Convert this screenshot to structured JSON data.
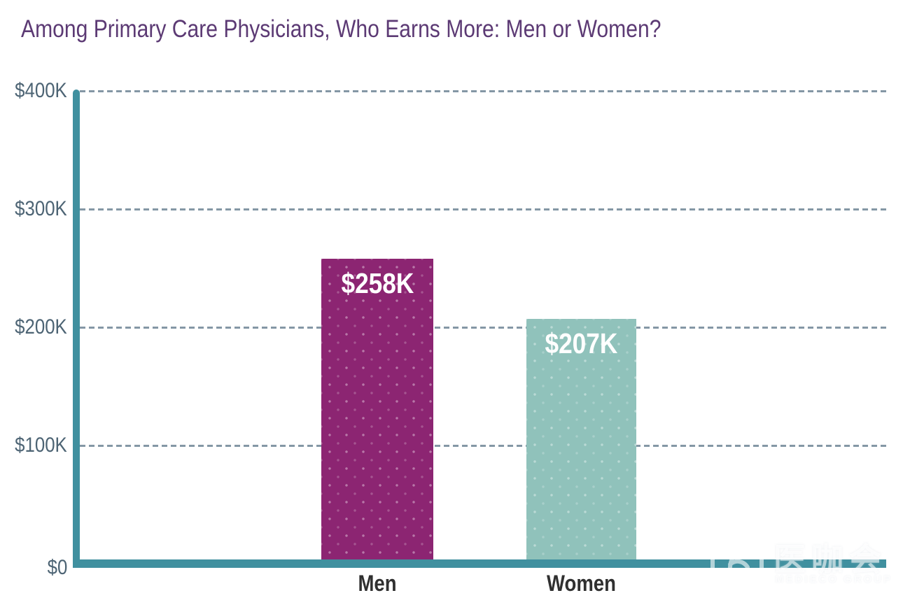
{
  "title": {
    "text": "Among Primary Care Physicians, Who Earns More: Men or Women?",
    "color": "#5c3a74"
  },
  "chart_data": {
    "type": "bar",
    "title": "Among Primary Care Physicians, Who Earns More: Men or Women?",
    "categories": [
      "Men",
      "Women"
    ],
    "values": [
      258000,
      207000
    ],
    "value_labels": [
      "$258K",
      "$207K"
    ],
    "series_colors": [
      "#8c2572",
      "#90c2bb"
    ],
    "bar_pattern": "diagonal-dots",
    "bar_label_color": "#ffffff",
    "xlabel": "",
    "ylabel": "",
    "ylim": [
      0,
      400000
    ],
    "yticks": [
      {
        "label": "$400K",
        "value": 400000
      },
      {
        "label": "$300K",
        "value": 300000
      },
      {
        "label": "$200K",
        "value": 200000
      },
      {
        "label": "$100K",
        "value": 100000
      },
      {
        "label": "$0",
        "value": 0
      }
    ],
    "grid": "horizontal-dashed",
    "gridline_color": "#8497a5",
    "axis_color": "#40909f",
    "tick_label_color": "#4d6474",
    "category_label_color": "#303030",
    "legend": "none"
  },
  "watermark": {
    "cjk_text": "医咖会",
    "latin_text": "MEDIECO GROUP"
  }
}
